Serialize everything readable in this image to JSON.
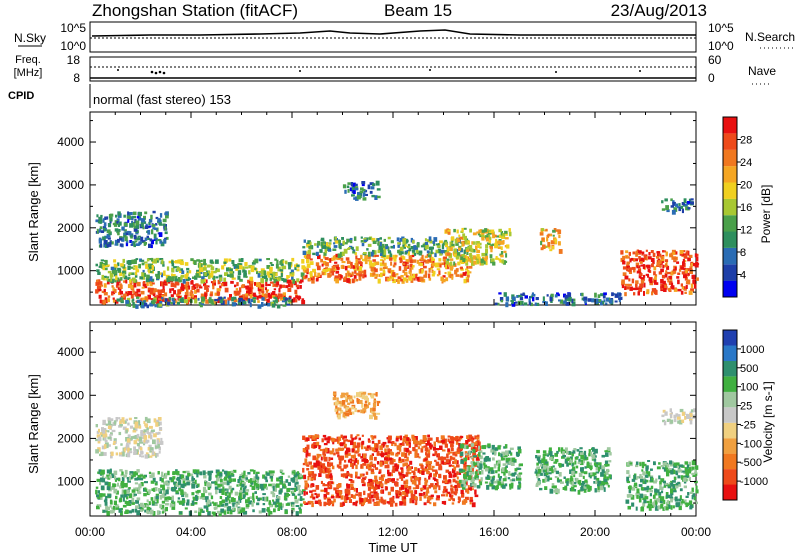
{
  "header": {
    "station": "Zhongshan Station (fitACF)",
    "beam": "Beam 15",
    "date": "23/Aug/2013"
  },
  "sky_panel": {
    "left_label": "N.Sky",
    "left_top": "10^5",
    "left_bottom": "10^0",
    "right_top": "10^5",
    "right_bottom": "10^0",
    "right_label": "N.Search"
  },
  "freq_panel": {
    "left_label_1": "Freq.",
    "left_label_2": "[MHz]",
    "left_top": "18",
    "left_bottom": "8",
    "right_top": "60",
    "right_bottom": "0",
    "right_label": "Nave"
  },
  "cpid": {
    "label": "CPID",
    "value": "normal (fast stereo) 153"
  },
  "chart_data": [
    {
      "type": "heatmap",
      "quantity": "Power",
      "ylabel": "Slant Range [km]",
      "ylim": [
        200,
        4700
      ],
      "yticks": [
        "1000",
        "2000",
        "3000",
        "4000"
      ],
      "xlabel": "Time UT",
      "xticks": [
        "00:00",
        "04:00",
        "08:00",
        "12:00",
        "16:00",
        "20:00",
        "00:00"
      ],
      "colorbar": {
        "label": "Power [dB]",
        "ticks": [
          "4",
          "8",
          "12",
          "16",
          "20",
          "24",
          "28"
        ],
        "colors": [
          "#0000f0",
          "#1e3fa8",
          "#2a6cb4",
          "#2e8f5e",
          "#4aa04a",
          "#a8c832",
          "#f0d020",
          "#f5a623",
          "#f07820",
          "#ee4a1a",
          "#e81010"
        ]
      },
      "echo_regions": [
        {
          "t0": 0.2,
          "t1": 8.4,
          "r0": 300,
          "r1": 800,
          "level": 28
        },
        {
          "t0": 0.2,
          "t1": 8.4,
          "r0": 800,
          "r1": 1300,
          "level": 14
        },
        {
          "t0": 0.2,
          "t1": 3.0,
          "r0": 1600,
          "r1": 2400,
          "level": 8
        },
        {
          "t0": 1.0,
          "t1": 8.0,
          "r0": 200,
          "r1": 400,
          "level": 10
        },
        {
          "t0": 8.4,
          "t1": 15.0,
          "r0": 800,
          "r1": 1400,
          "level": 24
        },
        {
          "t0": 8.4,
          "t1": 15.0,
          "r0": 1400,
          "r1": 1800,
          "level": 12
        },
        {
          "t0": 10.0,
          "t1": 11.4,
          "r0": 2700,
          "r1": 3100,
          "level": 8
        },
        {
          "t0": 14.0,
          "t1": 16.6,
          "r0": 1200,
          "r1": 2000,
          "level": 18
        },
        {
          "t0": 16.0,
          "t1": 21.0,
          "r0": 250,
          "r1": 500,
          "level": 8
        },
        {
          "t0": 17.8,
          "t1": 18.6,
          "r0": 1500,
          "r1": 2000,
          "level": 20
        },
        {
          "t0": 21.0,
          "t1": 24.0,
          "r0": 500,
          "r1": 1500,
          "level": 28
        },
        {
          "t0": 22.6,
          "t1": 23.8,
          "r0": 2400,
          "r1": 2700,
          "level": 8
        }
      ]
    },
    {
      "type": "heatmap",
      "quantity": "Velocity",
      "ylabel": "Slant Range [km]",
      "ylim": [
        200,
        4700
      ],
      "yticks": [
        "1000",
        "2000",
        "3000",
        "4000"
      ],
      "xlabel": "Time UT",
      "xticks": [
        "00:00",
        "04:00",
        "08:00",
        "12:00",
        "16:00",
        "20:00",
        "00:00"
      ],
      "colorbar": {
        "label": "Velocity [m s-1]",
        "ticks": [
          "1000",
          "500",
          "100",
          "25",
          "-25",
          "-100",
          "-500",
          "-1000"
        ],
        "colors": [
          "#2040b0",
          "#2a78c8",
          "#2e8f6e",
          "#40b040",
          "#a0c8a0",
          "#c8c8c8",
          "#f0d080",
          "#f0a040",
          "#f07820",
          "#ee4a1a",
          "#e81010"
        ]
      },
      "echo_regions": [
        {
          "t0": 0.2,
          "t1": 8.4,
          "r0": 300,
          "r1": 1300,
          "level": 100
        },
        {
          "t0": 0.2,
          "t1": 2.8,
          "r0": 1600,
          "r1": 2500,
          "level": 25
        },
        {
          "t0": 8.4,
          "t1": 15.4,
          "r0": 500,
          "r1": 2100,
          "level": -500
        },
        {
          "t0": 9.6,
          "t1": 11.4,
          "r0": 2500,
          "r1": 3100,
          "level": -100
        },
        {
          "t0": 14.6,
          "t1": 17.0,
          "r0": 900,
          "r1": 1900,
          "level": 100
        },
        {
          "t0": 17.6,
          "t1": 20.6,
          "r0": 800,
          "r1": 1800,
          "level": 100
        },
        {
          "t0": 21.2,
          "t1": 24.0,
          "r0": 400,
          "r1": 1500,
          "level": 100
        },
        {
          "t0": 22.6,
          "t1": 23.9,
          "r0": 2400,
          "r1": 2700,
          "level": 25
        }
      ]
    }
  ]
}
